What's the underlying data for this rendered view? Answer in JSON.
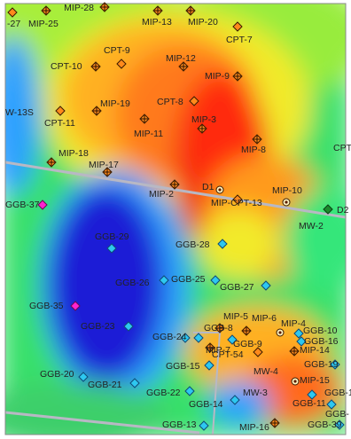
{
  "map": {
    "gradient": [
      "#1f1fd6",
      "#2fa0ff",
      "#37e0e8",
      "#35e67a",
      "#9cf03d",
      "#f2ea2a",
      "#ffb020",
      "#ff7a1a",
      "#f23414"
    ],
    "road_color": "#b8b8c4",
    "grid_color": "#c9c9d2"
  },
  "markers": [
    {
      "id": "mk-mip-28",
      "label": "MIP-28",
      "type": "orange-cross"
    },
    {
      "id": "mk-27",
      "label": "-27",
      "type": "orange"
    },
    {
      "id": "mk-mip-25",
      "label": "MIP-25",
      "type": "orange-cross"
    },
    {
      "id": "mk-mip-13",
      "label": "MIP-13",
      "type": "orange-cross"
    },
    {
      "id": "mk-mip-20",
      "label": "MIP-20",
      "type": "orange-cross"
    },
    {
      "id": "mk-cpt-7",
      "label": "CPT-7",
      "type": "orange"
    },
    {
      "id": "mk-cpt-9",
      "label": "CPT-9",
      "type": "orange"
    },
    {
      "id": "mk-cpt-10",
      "label": "CPT-10",
      "type": "orange-cross"
    },
    {
      "id": "mk-mip-12",
      "label": "MIP-12",
      "type": "orange-cross"
    },
    {
      "id": "mk-mip-9",
      "label": "MIP-9",
      "type": "orange-cross"
    },
    {
      "id": "mk-w-13s",
      "label": "W-13S",
      "type": "none"
    },
    {
      "id": "mk-cpt-11",
      "label": "CPT-11",
      "type": "orange"
    },
    {
      "id": "mk-mip-19",
      "label": "MIP-19",
      "type": "orange-cross"
    },
    {
      "id": "mk-cpt-8",
      "label": "CPT-8",
      "type": "orange"
    },
    {
      "id": "mk-mip-11",
      "label": "MIP-11",
      "type": "orange-cross"
    },
    {
      "id": "mk-mip-3",
      "label": "MIP-3",
      "type": "orange-cross"
    },
    {
      "id": "mk-mip-8",
      "label": "MIP-8",
      "type": "orange-cross"
    },
    {
      "id": "mk-cpt",
      "label": "CPT",
      "type": "none"
    },
    {
      "id": "mk-mip-18",
      "label": "MIP-18",
      "type": "orange-cross"
    },
    {
      "id": "mk-mip-17",
      "label": "MIP-17",
      "type": "orange-cross"
    },
    {
      "id": "mk-d1",
      "label": "D1",
      "type": "well"
    },
    {
      "id": "mk-mip-2",
      "label": "MIP-2",
      "type": "orange-cross"
    },
    {
      "id": "mk-mip-cpt-13",
      "label": "MIP-CPT-13",
      "type": "orange"
    },
    {
      "id": "mk-mip-10",
      "label": "MIP-10",
      "type": "well"
    },
    {
      "id": "mk-d2",
      "label": "D2",
      "type": "green"
    },
    {
      "id": "mk-mw-2",
      "label": "MW-2",
      "type": "none"
    },
    {
      "id": "mk-ggb-37",
      "label": "GGB-37",
      "type": "magenta"
    },
    {
      "id": "mk-ggb-29",
      "label": "GGB-29",
      "type": "cyan"
    },
    {
      "id": "mk-ggb-28",
      "label": "GGB-28",
      "type": "cyan"
    },
    {
      "id": "mk-ggb-26",
      "label": "GGB-26",
      "type": "cyan"
    },
    {
      "id": "mk-ggb-25",
      "label": "GGB-25",
      "type": "cyan"
    },
    {
      "id": "mk-ggb-27",
      "label": "GGB-27",
      "type": "cyan"
    },
    {
      "id": "mk-ggb-35",
      "label": "GGB-35",
      "type": "magenta"
    },
    {
      "id": "mk-ggb-23",
      "label": "GGB-23",
      "type": "cyan"
    },
    {
      "id": "mk-mip-5",
      "label": "MIP-5",
      "type": "orange-cross"
    },
    {
      "id": "mk-mip-6",
      "label": "MIP-6",
      "type": "orange-cross"
    },
    {
      "id": "mk-mip-4",
      "label": "MIP-4",
      "type": "well"
    },
    {
      "id": "mk-ggb-10",
      "label": "GGB-10",
      "type": "cyan"
    },
    {
      "id": "mk-ggb-8",
      "label": "GGB-8",
      "type": "cyan"
    },
    {
      "id": "mk-ggb-9",
      "label": "GGB-9",
      "type": "cyan"
    },
    {
      "id": "mk-ggb-16",
      "label": "GGB-16",
      "type": "cyan"
    },
    {
      "id": "mk-ggb-24",
      "label": "GGB-24",
      "type": "cyan"
    },
    {
      "id": "mk-mip-7",
      "label": "MIP-7",
      "type": "orange-cross"
    },
    {
      "id": "mk-cpt-54",
      "label": "CPT-54",
      "type": "orange"
    },
    {
      "id": "mk-mip-14",
      "label": "MIP-14",
      "type": "orange-cross"
    },
    {
      "id": "mk-ggb-19",
      "label": "GGB-19",
      "type": "cyan"
    },
    {
      "id": "mk-ggb-15",
      "label": "GGB-15",
      "type": "cyan"
    },
    {
      "id": "mk-mw-4",
      "label": "MW-4",
      "type": "none"
    },
    {
      "id": "mk-mip-15",
      "label": "MIP-15",
      "type": "well"
    },
    {
      "id": "mk-ggb-20",
      "label": "GGB-20",
      "type": "cyan"
    },
    {
      "id": "mk-ggb-21",
      "label": "GGB-21",
      "type": "cyan"
    },
    {
      "id": "mk-ggb-22",
      "label": "GGB-22",
      "type": "cyan"
    },
    {
      "id": "mk-ggb-14",
      "label": "GGB-14",
      "type": "cyan"
    },
    {
      "id": "mk-mw-3",
      "label": "MW-3",
      "type": "none"
    },
    {
      "id": "mk-ggb-11",
      "label": "GGB-11",
      "type": "cyan"
    },
    {
      "id": "mk-ggb-1",
      "label": "GGB-1",
      "type": "cyan"
    },
    {
      "id": "mk-ggb-13",
      "label": "GGB-13",
      "type": "cyan"
    },
    {
      "id": "mk-mip-16",
      "label": "MIP-16",
      "type": "orange-cross"
    },
    {
      "id": "mk-ggb-39",
      "label": "GGB-39",
      "type": "cyan"
    },
    {
      "id": "mk-ggb-edge",
      "label": "GGB-",
      "type": "none"
    }
  ]
}
